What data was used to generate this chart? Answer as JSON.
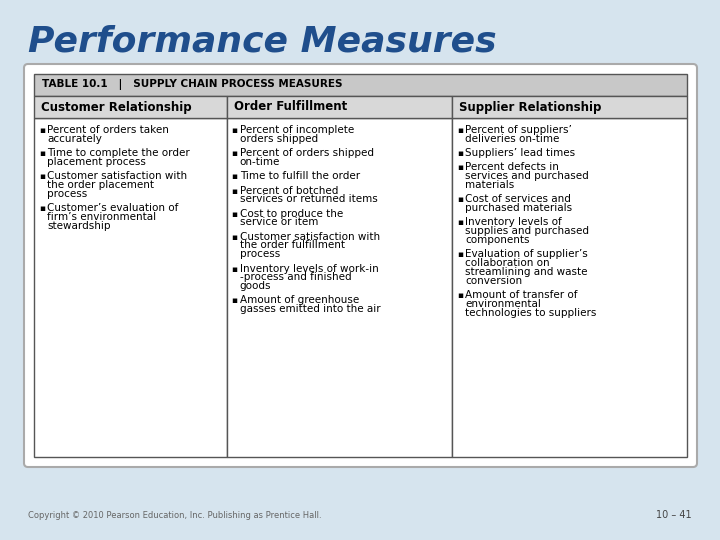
{
  "title": "Performance Measures",
  "title_color": "#1F4E8C",
  "bg_color": "#D6E4EE",
  "card_bg": "#FFFFFF",
  "card_shadow": "#C0CDD8",
  "table_title_bg": "#C8C8C8",
  "header_bg": "#D8D8D8",
  "table_title": "TABLE 10.1   |   SUPPLY CHAIN PROCESS MEASURES",
  "col_headers": [
    "Customer Relationship",
    "Order Fulfillment",
    "Supplier Relationship"
  ],
  "col1_items": [
    "Percent of orders taken\naccurately",
    "Time to complete the order\nplacement process",
    "Customer satisfaction with\nthe order placement\nprocess",
    "Customer’s evaluation of\nfirm’s environmental\nstewardship"
  ],
  "col2_items": [
    "Percent of incomplete\norders shipped",
    "Percent of orders shipped\non-time",
    "Time to fulfill the order",
    "Percent of botched\nservices or returned items",
    "Cost to produce the\nservice or item",
    "Customer satisfaction with\nthe order fulfillment\nprocess",
    "Inventory levels of work-in\n-process and finished\ngoods",
    "Amount of greenhouse\ngasses emitted into the air"
  ],
  "col3_items": [
    "Percent of suppliers’\ndeliveries on-time",
    "Suppliers’ lead times",
    "Percent defects in\nservices and purchased\nmaterials",
    "Cost of services and\npurchased materials",
    "Inventory levels of\nsupplies and purchased\ncomponents",
    "Evaluation of supplier’s\ncollaboration on\nstreamlining and waste\nconversion",
    "Amount of transfer of\nenvironmental\ntechnologies to suppliers"
  ],
  "footer_left": "Copyright © 2010 Pearson Education, Inc. Publishing as Prentice Hall.",
  "footer_right": "10 – 41",
  "title_fontsize": 26,
  "table_title_fontsize": 7.5,
  "header_fontsize": 8.5,
  "body_fontsize": 7.5,
  "bullet_char": "▪"
}
